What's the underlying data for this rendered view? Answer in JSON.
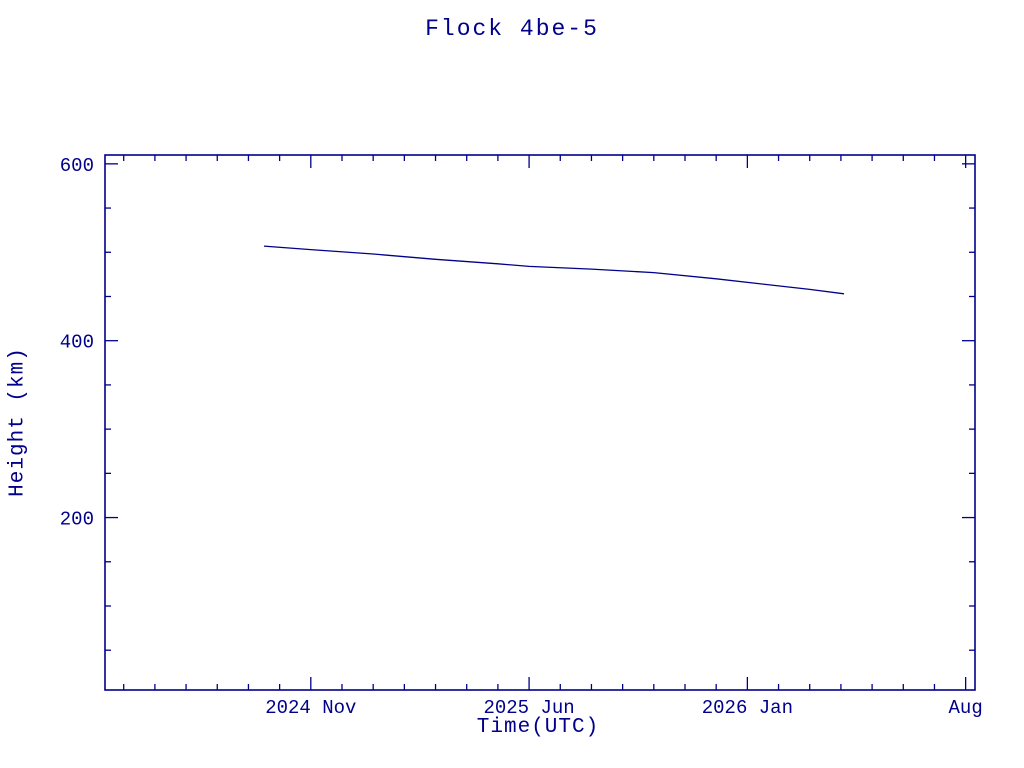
{
  "colors": {
    "line": "#00008B",
    "axis": "#00008B",
    "text": "#00008B",
    "background": "#ffffff"
  },
  "chart_data": {
    "type": "line",
    "title": "Flock 4be-5",
    "xlabel": "Time(UTC)",
    "ylabel": "Height (km)",
    "grid": false,
    "legend": false,
    "x_unit": "months since 2024 Jan (0 = 2024 Jan)",
    "xlim": [
      3.4,
      31.3
    ],
    "ylim": [
      5,
      610
    ],
    "x_major_ticks": [
      {
        "value": 10,
        "label": "2024 Nov"
      },
      {
        "value": 17,
        "label": "2025 Jun"
      },
      {
        "value": 24,
        "label": "2026 Jan"
      },
      {
        "value": 31,
        "label": "Aug"
      }
    ],
    "x_minor_step": 1,
    "y_major_ticks": [
      {
        "value": 200,
        "label": "200"
      },
      {
        "value": 400,
        "label": "400"
      },
      {
        "value": 600,
        "label": "600"
      }
    ],
    "y_minor_step": 50,
    "series": [
      {
        "name": "Flock 4be-5 height",
        "x": [
          8.5,
          10,
          12,
          14,
          16,
          17,
          19,
          21,
          23,
          25,
          26,
          27.1
        ],
        "y": [
          507,
          503,
          498,
          492,
          487,
          484,
          481,
          477,
          470,
          462,
          458,
          453
        ],
        "x_dates": [
          "2024-09-15",
          "2024-11-01",
          "2025-01-01",
          "2025-03-01",
          "2025-05-01",
          "2025-06-01",
          "2025-08-01",
          "2025-10-01",
          "2025-12-01",
          "2026-02-01",
          "2026-03-01",
          "2026-04-03"
        ]
      }
    ]
  }
}
